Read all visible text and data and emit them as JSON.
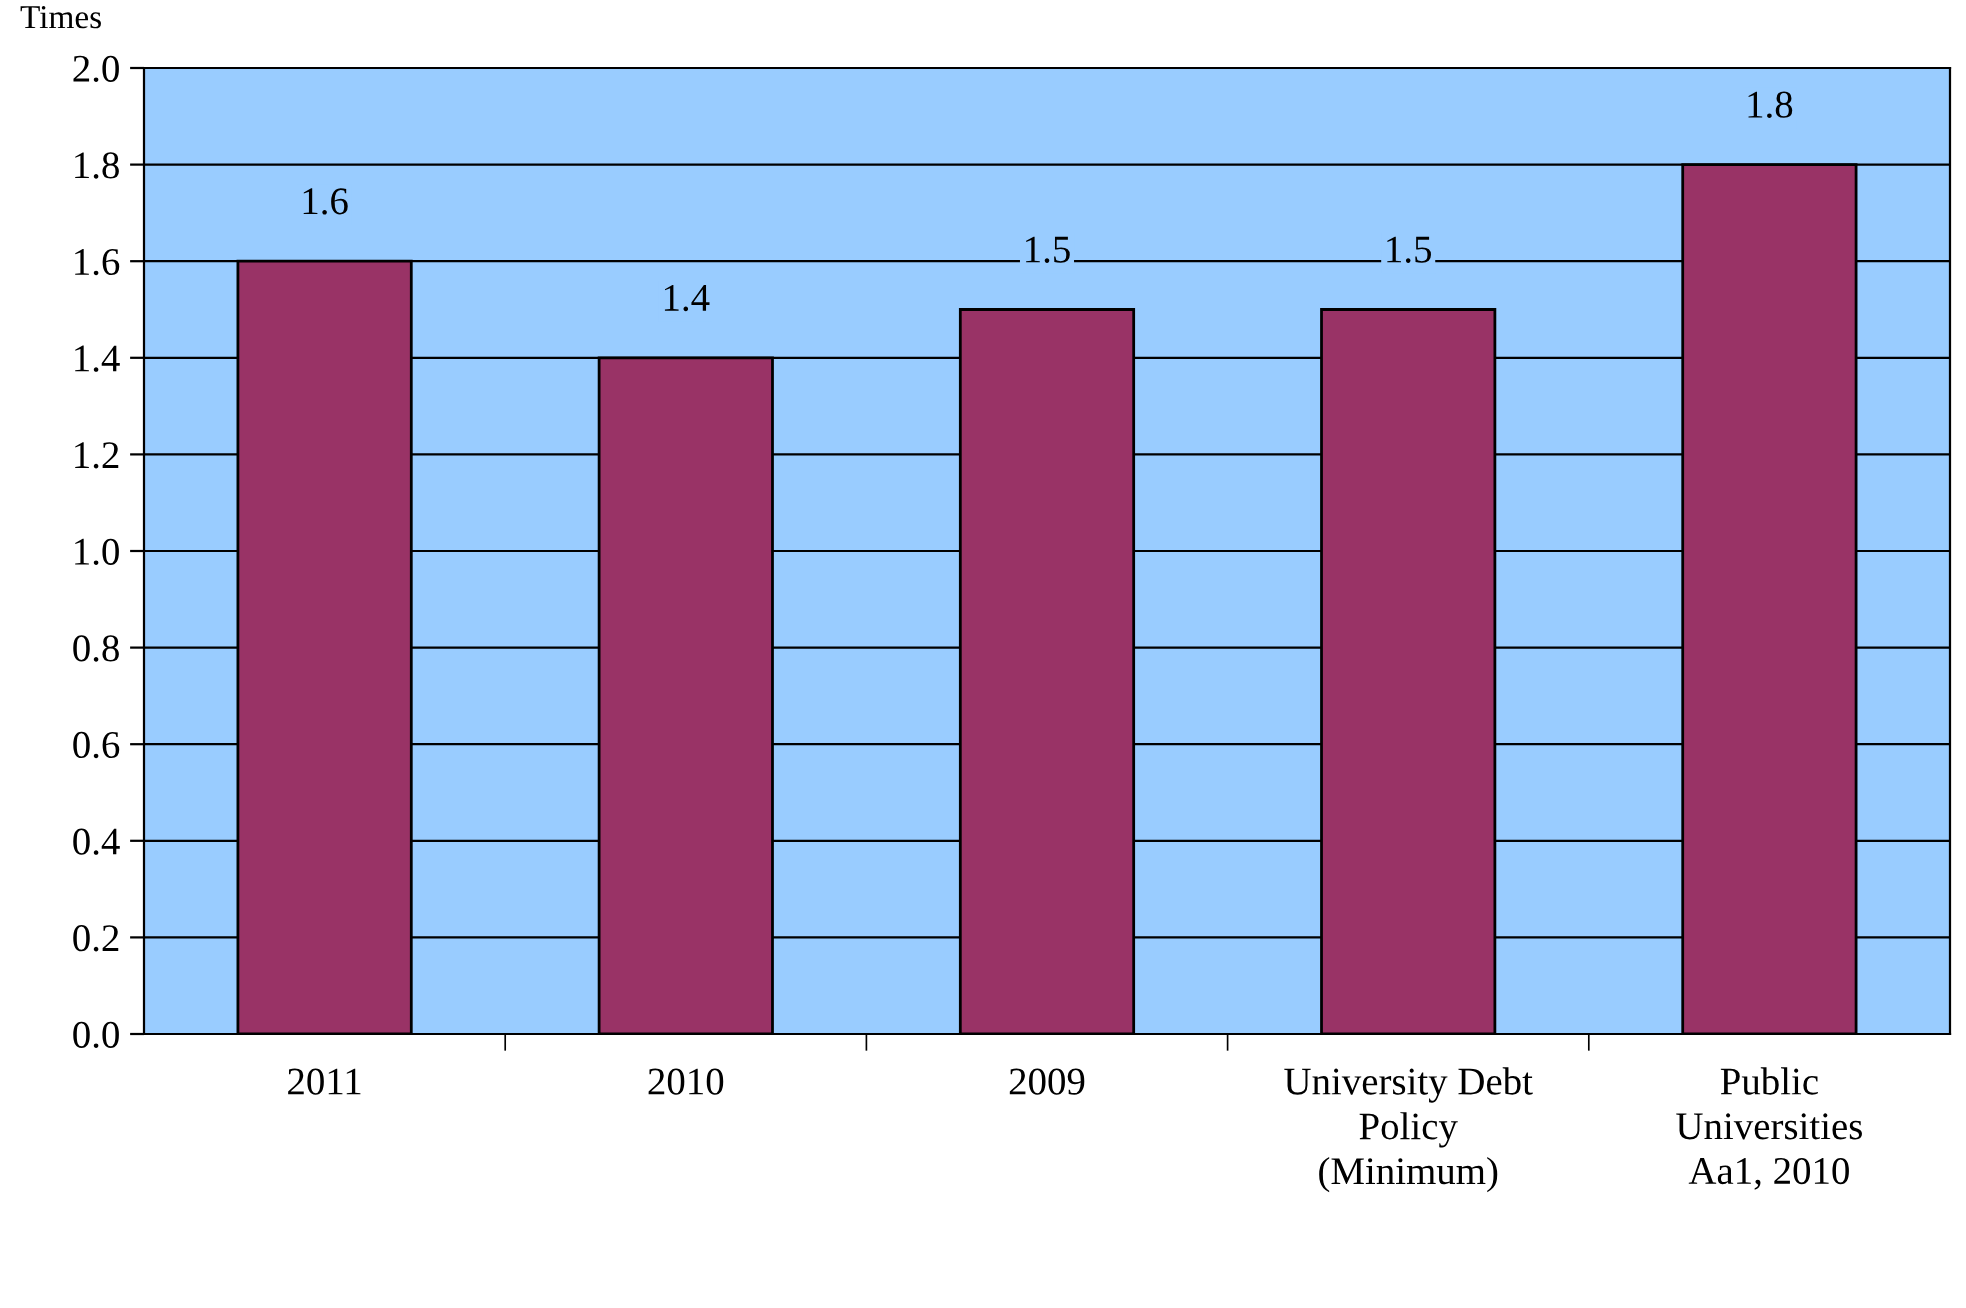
{
  "chart_data": {
    "type": "bar",
    "ylabel": "Times",
    "categories": [
      "2011",
      "2010",
      "2009",
      "University Debt\nPolicy\n(Minimum)",
      "Public\nUniversities\nAa1, 2010"
    ],
    "values": [
      1.6,
      1.4,
      1.5,
      1.5,
      1.8
    ],
    "color": "#993366",
    "ylim": [
      0,
      2.0
    ],
    "yticks": [
      {
        "value": 0,
        "label": "0.0"
      },
      {
        "value": 0.2,
        "label": "0.2"
      },
      {
        "value": 0.4,
        "label": "0.4"
      },
      {
        "value": 0.6,
        "label": "0.6"
      },
      {
        "value": 0.8,
        "label": "0.8"
      },
      {
        "value": 1.0,
        "label": "1.0"
      },
      {
        "value": 1.2,
        "label": "1.2"
      },
      {
        "value": 1.4,
        "label": "1.4"
      },
      {
        "value": 1.6,
        "label": "1.6"
      },
      {
        "value": 1.8,
        "label": "1.8"
      },
      {
        "value": 2.0,
        "label": "2.0"
      }
    ],
    "grid": "y",
    "data_labels": true
  }
}
